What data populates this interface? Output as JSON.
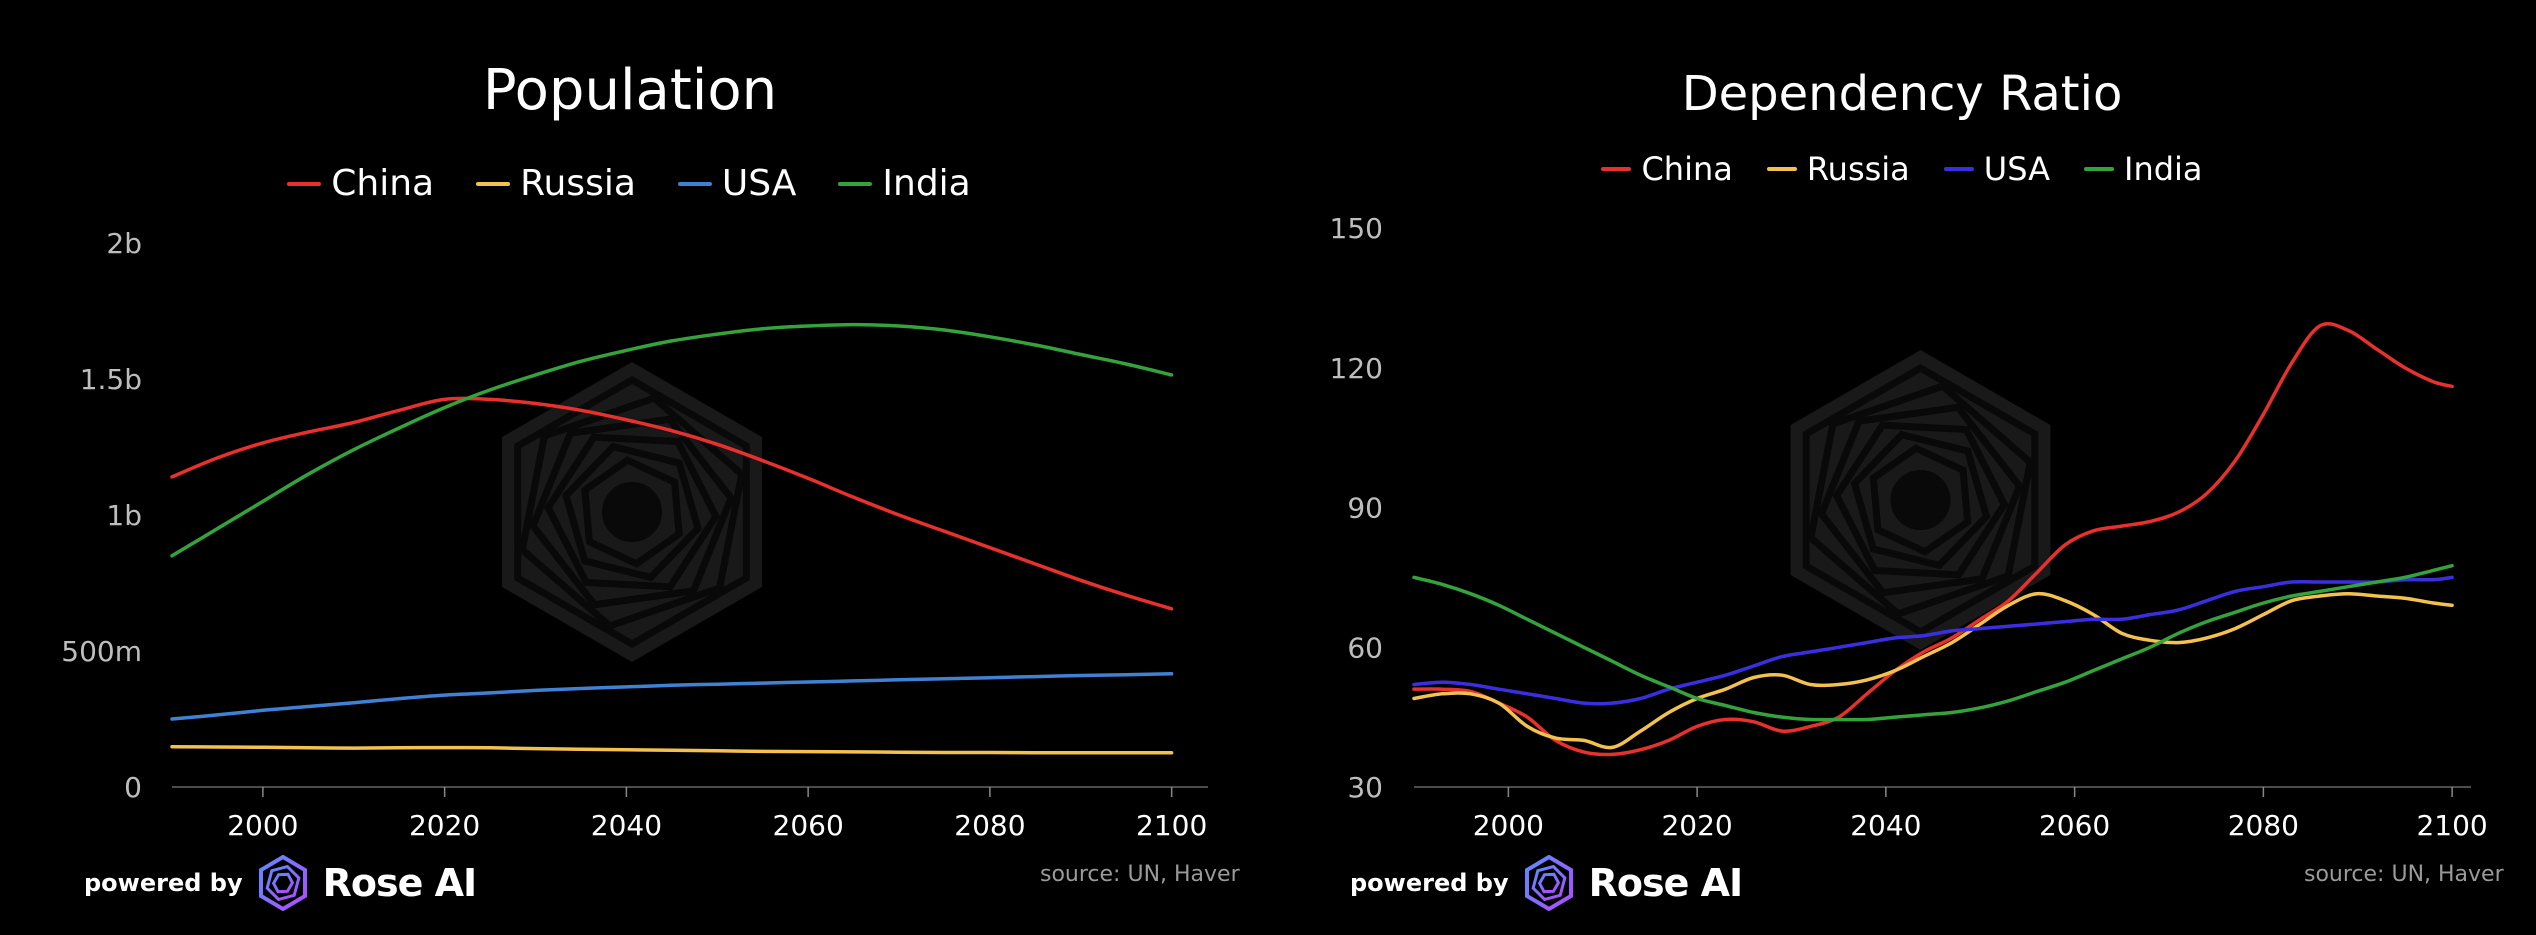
{
  "colors": {
    "background": "#000000",
    "china": "#e8302c",
    "russia": "#f3c14e",
    "usa_left": "#3f82d4",
    "usa_right": "#3a2fe0",
    "india": "#34a33c",
    "axis": "#666666",
    "watermark": "#1f1f1f"
  },
  "branding": {
    "powered_by": "powered by",
    "name": "Rose AI",
    "logo_icon": "rose-ai-logo-icon"
  },
  "chart_data": [
    {
      "type": "line",
      "title": "Population",
      "source": "source: UN, Haver",
      "xlim": [
        1990,
        2104
      ],
      "ylim": [
        0,
        2000000000
      ],
      "x_ticks": [
        2000,
        2020,
        2040,
        2060,
        2080,
        2100
      ],
      "x_tick_labels": [
        "2000",
        "2020",
        "2040",
        "2060",
        "2080",
        "2100"
      ],
      "y_ticks": [
        0,
        500000000,
        1000000000,
        1500000000,
        2000000000
      ],
      "y_tick_labels": [
        "0",
        "500m",
        "1b",
        "1.5b",
        "2b"
      ],
      "legend": "top-center",
      "grid": false,
      "x": [
        1990,
        1995,
        2000,
        2005,
        2010,
        2015,
        2020,
        2025,
        2030,
        2035,
        2040,
        2045,
        2050,
        2055,
        2060,
        2065,
        2070,
        2075,
        2080,
        2085,
        2090,
        2095,
        2100
      ],
      "series": [
        {
          "name": "China",
          "color": "#e8302c",
          "values": [
            1140000000,
            1210000000,
            1265000000,
            1305000000,
            1340000000,
            1385000000,
            1425000000,
            1425000000,
            1410000000,
            1385000000,
            1350000000,
            1310000000,
            1260000000,
            1200000000,
            1135000000,
            1065000000,
            1000000000,
            940000000,
            880000000,
            820000000,
            760000000,
            705000000,
            655000000
          ]
        },
        {
          "name": "Russia",
          "color": "#f3c14e",
          "values": [
            148000000,
            147000000,
            146000000,
            144000000,
            143000000,
            144000000,
            145000000,
            144000000,
            141000000,
            139000000,
            137000000,
            135000000,
            133000000,
            131000000,
            130000000,
            129000000,
            128000000,
            127000000,
            127000000,
            126000000,
            126000000,
            126000000,
            126000000
          ]
        },
        {
          "name": "USA",
          "color": "#3f82d4",
          "values": [
            250000000,
            265000000,
            282000000,
            296000000,
            310000000,
            325000000,
            338000000,
            346000000,
            355000000,
            362000000,
            368000000,
            374000000,
            378000000,
            382000000,
            386000000,
            390000000,
            394000000,
            398000000,
            402000000,
            406000000,
            410000000,
            413000000,
            416000000
          ]
        },
        {
          "name": "India",
          "color": "#34a33c",
          "values": [
            850000000,
            950000000,
            1050000000,
            1150000000,
            1240000000,
            1320000000,
            1395000000,
            1460000000,
            1515000000,
            1565000000,
            1605000000,
            1640000000,
            1665000000,
            1685000000,
            1695000000,
            1700000000,
            1695000000,
            1680000000,
            1655000000,
            1625000000,
            1590000000,
            1555000000,
            1515000000
          ]
        }
      ]
    },
    {
      "type": "line",
      "title": "Dependency Ratio",
      "source": "source: UN, Haver",
      "xlim": [
        1990,
        2102
      ],
      "ylim": [
        30,
        150
      ],
      "x_ticks": [
        2000,
        2020,
        2040,
        2060,
        2080,
        2100
      ],
      "x_tick_labels": [
        "2000",
        "2020",
        "2040",
        "2060",
        "2080",
        "2100"
      ],
      "y_ticks": [
        30,
        60,
        90,
        120,
        150
      ],
      "y_tick_labels": [
        "30",
        "60",
        "90",
        "120",
        "150"
      ],
      "legend": "top-center",
      "grid": false,
      "x": [
        1990,
        1993,
        1996,
        1999,
        2002,
        2005,
        2008,
        2011,
        2014,
        2017,
        2020,
        2023,
        2026,
        2029,
        2032,
        2035,
        2038,
        2041,
        2044,
        2047,
        2050,
        2053,
        2056,
        2059,
        2062,
        2065,
        2068,
        2071,
        2074,
        2077,
        2080,
        2083,
        2086,
        2089,
        2092,
        2095,
        2098,
        2100
      ],
      "series": [
        {
          "name": "China",
          "color": "#e8302c",
          "values": [
            51,
            51,
            50.5,
            48,
            45,
            40,
            37.5,
            37,
            38,
            40,
            43,
            44.5,
            44,
            42,
            43,
            45,
            50,
            55,
            59,
            62,
            66,
            70,
            76,
            82,
            85,
            86,
            87,
            89,
            93,
            100,
            110,
            121,
            129,
            128,
            124,
            120,
            117,
            116
          ]
        },
        {
          "name": "Russia",
          "color": "#f3c14e",
          "values": [
            49,
            50,
            50,
            48,
            43,
            40.5,
            40,
            38.5,
            42,
            46,
            49,
            51,
            53.5,
            54,
            52,
            52,
            53,
            55,
            58,
            61,
            65,
            69,
            71.5,
            70,
            67,
            63,
            61.5,
            61,
            62,
            64,
            67,
            70,
            71,
            71.5,
            71,
            70.5,
            69.5,
            69
          ]
        },
        {
          "name": "USA",
          "color": "#3a2fe0",
          "values": [
            52,
            52.5,
            52,
            51,
            50,
            49,
            48,
            48,
            49,
            51,
            52.5,
            54,
            56,
            58,
            59,
            60,
            61,
            62,
            62.5,
            63.5,
            64,
            64.5,
            65,
            65.5,
            66,
            66,
            67,
            68,
            70,
            72,
            73,
            74,
            74,
            74,
            74,
            74.5,
            74.5,
            75
          ]
        },
        {
          "name": "India",
          "color": "#34a33c",
          "values": [
            75,
            73.5,
            71.5,
            69,
            66,
            63,
            60,
            57,
            54,
            51.5,
            49,
            47.5,
            46,
            45,
            44.5,
            44.5,
            44.5,
            45,
            45.5,
            46,
            47,
            48.5,
            50.5,
            52.5,
            55,
            57.5,
            60,
            63,
            65.5,
            67.5,
            69.5,
            71,
            72,
            73,
            74,
            75,
            76.5,
            77.5
          ]
        }
      ]
    }
  ]
}
